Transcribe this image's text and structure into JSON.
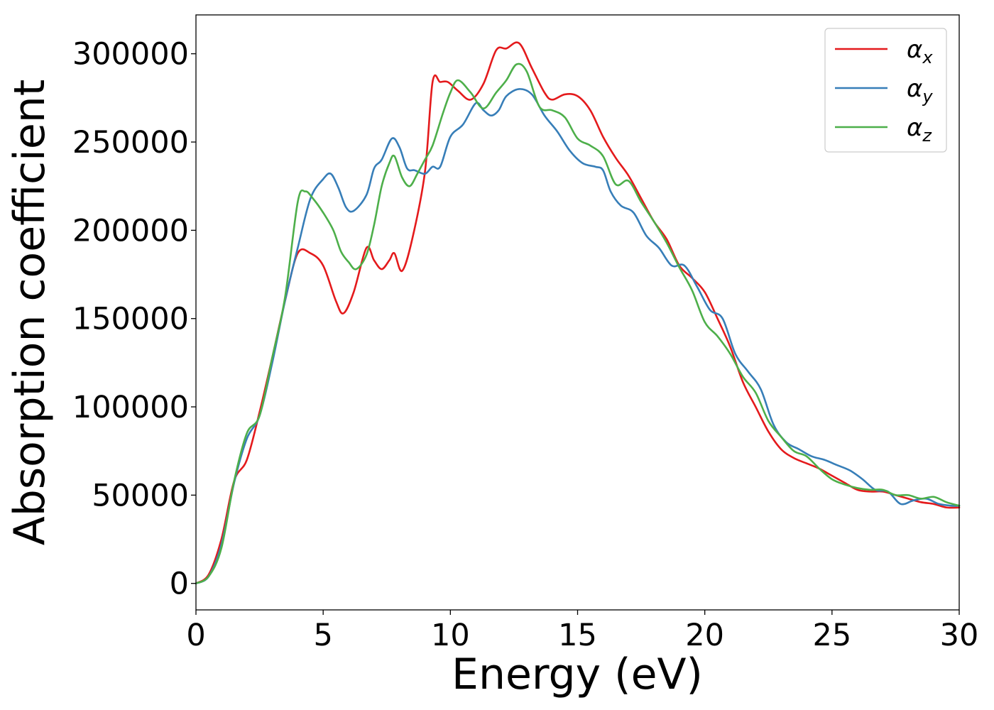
{
  "chart_data": {
    "type": "line",
    "title": "",
    "xlabel": "Energy (eV)",
    "ylabel": "Absorption coefficient",
    "xlim": [
      0,
      30
    ],
    "ylim": [
      -15000,
      322000
    ],
    "xticks": [
      0,
      5,
      10,
      15,
      20,
      25,
      30
    ],
    "yticks": [
      0,
      50000,
      100000,
      150000,
      200000,
      250000,
      300000
    ],
    "xtick_labels": [
      "0",
      "5",
      "10",
      "15",
      "20",
      "25",
      "30"
    ],
    "ytick_labels": [
      "0",
      "50000",
      "100000",
      "150000",
      "200000",
      "250000",
      "300000"
    ],
    "grid": false,
    "legend_position": "top-right",
    "series": [
      {
        "name": "αx",
        "base": "α",
        "sub": "x",
        "color": "#e41a1c",
        "x": [
          0,
          0.5,
          1.0,
          1.5,
          2.0,
          2.5,
          3.0,
          3.5,
          4.0,
          4.5,
          5.0,
          5.5,
          5.8,
          6.2,
          6.7,
          7.0,
          7.3,
          7.6,
          7.8,
          8.1,
          8.5,
          9.0,
          9.3,
          9.6,
          9.9,
          10.3,
          10.8,
          11.3,
          11.8,
          12.2,
          12.7,
          13.2,
          13.7,
          14.0,
          14.5,
          15.0,
          15.5,
          16.0,
          16.5,
          17.0,
          17.5,
          18.0,
          18.5,
          19.0,
          19.5,
          20.0,
          20.5,
          21.0,
          21.5,
          22.0,
          22.5,
          23.0,
          23.5,
          24.0,
          24.5,
          25.0,
          25.5,
          26.0,
          26.5,
          27.0,
          27.5,
          28.0,
          28.5,
          29.0,
          29.5,
          30.0
        ],
        "y": [
          0,
          5000,
          25000,
          58000,
          70000,
          97000,
          128000,
          160000,
          187000,
          187000,
          180000,
          160000,
          153000,
          165000,
          190000,
          183000,
          178000,
          183000,
          187000,
          177000,
          195000,
          233000,
          284000,
          284000,
          284000,
          279000,
          274000,
          283000,
          302000,
          303000,
          306000,
          292000,
          278000,
          274000,
          277000,
          276000,
          268000,
          253000,
          241000,
          231000,
          218000,
          205000,
          195000,
          180000,
          173000,
          165000,
          150000,
          134000,
          114000,
          100000,
          86000,
          76000,
          71000,
          68000,
          65000,
          61000,
          57000,
          53000,
          52000,
          52000,
          50000,
          48000,
          46000,
          45000,
          43000,
          43000
        ]
      },
      {
        "name": "αy",
        "base": "α",
        "sub": "y",
        "color": "#377eb8",
        "x": [
          0,
          0.5,
          1.0,
          1.5,
          2.0,
          2.5,
          3.0,
          3.5,
          4.0,
          4.5,
          5.0,
          5.3,
          5.6,
          5.9,
          6.2,
          6.7,
          7.0,
          7.3,
          7.7,
          8.0,
          8.3,
          8.6,
          9.0,
          9.3,
          9.6,
          10.0,
          10.5,
          11.0,
          11.3,
          11.6,
          11.9,
          12.2,
          12.7,
          13.2,
          13.7,
          14.2,
          14.7,
          15.2,
          15.7,
          16.0,
          16.3,
          16.7,
          17.2,
          17.7,
          18.2,
          18.7,
          19.2,
          19.7,
          20.2,
          20.7,
          21.2,
          21.7,
          22.2,
          22.7,
          23.2,
          23.7,
          24.2,
          24.7,
          25.2,
          25.7,
          26.2,
          26.7,
          27.2,
          27.7,
          28.2,
          28.7,
          29.2,
          29.7,
          30.0
        ],
        "y": [
          0,
          4000,
          22000,
          57000,
          82000,
          95000,
          125000,
          160000,
          190000,
          218000,
          229000,
          232000,
          224000,
          213000,
          211000,
          220000,
          235000,
          240000,
          252000,
          247000,
          235000,
          234000,
          232000,
          236000,
          236000,
          253000,
          260000,
          272000,
          268000,
          265000,
          268000,
          276000,
          280000,
          277000,
          265000,
          256000,
          245000,
          238000,
          236000,
          234000,
          222000,
          214000,
          210000,
          197000,
          190000,
          180000,
          180000,
          168000,
          155000,
          150000,
          130000,
          120000,
          110000,
          90000,
          80000,
          76000,
          72000,
          70000,
          67000,
          64000,
          59000,
          53000,
          52000,
          45000,
          47000,
          48000,
          45000,
          44000,
          44000
        ]
      },
      {
        "name": "αz",
        "base": "α",
        "sub": "z",
        "color": "#4daf4a",
        "x": [
          0,
          0.5,
          1.0,
          1.5,
          2.0,
          2.5,
          3.0,
          3.5,
          4.0,
          4.3,
          4.6,
          5.0,
          5.4,
          5.7,
          6.0,
          6.3,
          6.7,
          7.0,
          7.3,
          7.6,
          7.8,
          8.1,
          8.4,
          8.7,
          9.0,
          9.3,
          9.7,
          10.0,
          10.3,
          10.8,
          11.3,
          11.8,
          12.2,
          12.6,
          13.0,
          13.5,
          14.0,
          14.5,
          15.0,
          15.5,
          16.0,
          16.5,
          17.0,
          17.5,
          18.0,
          18.5,
          19.0,
          19.5,
          20.0,
          20.5,
          21.0,
          21.5,
          22.0,
          22.5,
          23.0,
          23.5,
          24.0,
          24.5,
          25.0,
          25.5,
          26.0,
          26.5,
          27.0,
          27.5,
          28.0,
          28.5,
          29.0,
          29.5,
          30.0
        ],
        "y": [
          0,
          4000,
          20000,
          58000,
          85000,
          95000,
          128000,
          162000,
          216000,
          222000,
          218000,
          210000,
          200000,
          188000,
          182000,
          178000,
          186000,
          203000,
          225000,
          238000,
          242000,
          230000,
          225000,
          232000,
          240000,
          248000,
          266000,
          278000,
          285000,
          278000,
          269000,
          278000,
          285000,
          294000,
          290000,
          270000,
          268000,
          264000,
          252000,
          248000,
          242000,
          226000,
          228000,
          216000,
          205000,
          193000,
          179000,
          166000,
          148000,
          140000,
          130000,
          117000,
          108000,
          92000,
          83000,
          75000,
          72000,
          65000,
          59000,
          56000,
          54000,
          53000,
          53000,
          50000,
          50000,
          48000,
          49000,
          46000,
          44000
        ]
      }
    ]
  }
}
